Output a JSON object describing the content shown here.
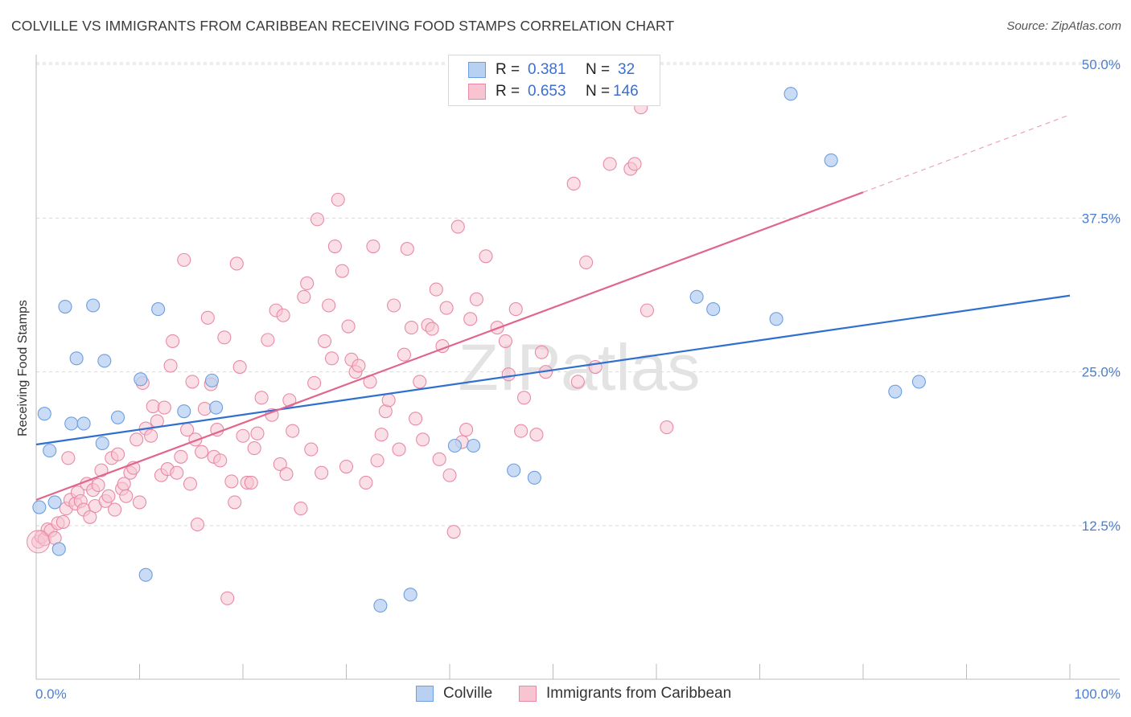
{
  "title": "COLVILLE VS IMMIGRANTS FROM CARIBBEAN RECEIVING FOOD STAMPS CORRELATION CHART",
  "source": "Source: ZipAtlas.com",
  "watermark": "ZIPatlas",
  "colors": {
    "colville_fill": "#b8d0f2",
    "colville_stroke": "#6d9ee0",
    "colville_line": "#2f6fcf",
    "caribbean_fill": "#f8c4d2",
    "caribbean_stroke": "#e88aa6",
    "caribbean_line": "#e0668e",
    "tick_text": "#4a7fd0",
    "grid": "#d9d9d9"
  },
  "legend": {
    "rows": [
      {
        "r_label": "R =",
        "r_value": "0.381",
        "n_label": "N =",
        "n_value": "32"
      },
      {
        "r_label": "R =",
        "r_value": "0.653",
        "n_label": "N =",
        "n_value": "146"
      }
    ]
  },
  "bottom_legend": [
    "Colville",
    "Immigrants from Caribbean"
  ],
  "chart_data": {
    "type": "scatter",
    "title": "COLVILLE VS IMMIGRANTS FROM CARIBBEAN RECEIVING FOOD STAMPS CORRELATION CHART",
    "xlabel": "",
    "ylabel": "Receiving Food Stamps",
    "xlim": [
      0,
      100
    ],
    "ylim": [
      0,
      52.5
    ],
    "x_tick_labels": [
      "0.0%",
      "100.0%"
    ],
    "y_ticks": [
      12.5,
      25.0,
      37.5,
      50.0
    ],
    "y_tick_labels": [
      "12.5%",
      "25.0%",
      "37.5%",
      "50.0%"
    ],
    "grid": true,
    "legend_position": "top-center",
    "series": [
      {
        "name": "Colville",
        "r": 0.381,
        "n": 32,
        "trend": {
          "x": [
            0,
            100
          ],
          "y": [
            19.1,
            31.2
          ]
        },
        "points": [
          [
            0.3,
            14.0
          ],
          [
            0.8,
            21.6
          ],
          [
            1.3,
            18.6
          ],
          [
            1.8,
            14.4
          ],
          [
            2.2,
            10.6
          ],
          [
            2.8,
            30.3
          ],
          [
            3.4,
            20.8
          ],
          [
            3.9,
            26.1
          ],
          [
            4.6,
            20.8
          ],
          [
            5.5,
            30.4
          ],
          [
            6.4,
            19.2
          ],
          [
            6.6,
            25.9
          ],
          [
            7.9,
            21.3
          ],
          [
            10.1,
            24.4
          ],
          [
            10.6,
            8.5
          ],
          [
            11.8,
            30.1
          ],
          [
            14.3,
            21.8
          ],
          [
            17.0,
            24.3
          ],
          [
            17.4,
            22.1
          ],
          [
            33.3,
            6.0
          ],
          [
            36.2,
            6.9
          ],
          [
            40.5,
            19.0
          ],
          [
            42.3,
            19.0
          ],
          [
            46.2,
            17.0
          ],
          [
            48.2,
            16.4
          ],
          [
            63.9,
            31.1
          ],
          [
            65.5,
            30.1
          ],
          [
            71.6,
            29.3
          ],
          [
            73.0,
            47.6
          ],
          [
            76.9,
            42.2
          ],
          [
            83.1,
            23.4
          ],
          [
            85.4,
            24.2
          ]
        ]
      },
      {
        "name": "Immigrants from Caribbean",
        "r": 0.653,
        "n": 146,
        "trend": {
          "x": [
            0,
            80
          ],
          "y": [
            14.6,
            39.6
          ]
        },
        "trend_dashed": {
          "x": [
            80,
            100
          ],
          "y": [
            39.6,
            45.9
          ]
        },
        "points": [
          [
            0.2,
            11.2
          ],
          [
            0.5,
            11.6
          ],
          [
            0.8,
            11.4
          ],
          [
            1.1,
            12.2
          ],
          [
            1.4,
            12.1
          ],
          [
            1.8,
            11.5
          ],
          [
            2.1,
            12.7
          ],
          [
            2.6,
            12.8
          ],
          [
            2.9,
            13.9
          ],
          [
            3.1,
            18.0
          ],
          [
            3.3,
            14.6
          ],
          [
            3.8,
            14.3
          ],
          [
            4.0,
            15.2
          ],
          [
            4.3,
            14.5
          ],
          [
            4.6,
            13.8
          ],
          [
            4.9,
            15.9
          ],
          [
            5.2,
            13.2
          ],
          [
            5.5,
            15.4
          ],
          [
            5.7,
            14.1
          ],
          [
            6.0,
            15.8
          ],
          [
            6.3,
            17.0
          ],
          [
            6.7,
            14.5
          ],
          [
            7.0,
            14.9
          ],
          [
            7.3,
            18.0
          ],
          [
            7.6,
            13.8
          ],
          [
            7.9,
            18.3
          ],
          [
            8.3,
            15.5
          ],
          [
            8.5,
            15.9
          ],
          [
            8.7,
            14.9
          ],
          [
            9.1,
            16.8
          ],
          [
            9.4,
            17.2
          ],
          [
            9.7,
            19.5
          ],
          [
            10.0,
            14.4
          ],
          [
            10.3,
            24.1
          ],
          [
            10.6,
            20.4
          ],
          [
            11.1,
            19.8
          ],
          [
            11.3,
            22.2
          ],
          [
            11.7,
            21.0
          ],
          [
            12.1,
            16.6
          ],
          [
            12.4,
            22.1
          ],
          [
            12.7,
            17.1
          ],
          [
            13.0,
            25.5
          ],
          [
            13.2,
            27.5
          ],
          [
            13.6,
            16.8
          ],
          [
            14.0,
            18.1
          ],
          [
            14.3,
            34.1
          ],
          [
            14.6,
            20.3
          ],
          [
            14.9,
            15.9
          ],
          [
            15.1,
            24.2
          ],
          [
            15.4,
            19.5
          ],
          [
            15.6,
            12.6
          ],
          [
            16.0,
            18.5
          ],
          [
            16.3,
            22.0
          ],
          [
            16.6,
            29.4
          ],
          [
            16.9,
            24.0
          ],
          [
            17.2,
            18.1
          ],
          [
            17.5,
            20.3
          ],
          [
            17.8,
            17.8
          ],
          [
            18.2,
            27.8
          ],
          [
            18.5,
            6.6
          ],
          [
            18.9,
            16.1
          ],
          [
            19.2,
            14.4
          ],
          [
            19.4,
            33.8
          ],
          [
            19.7,
            25.4
          ],
          [
            20.0,
            19.8
          ],
          [
            20.4,
            16.0
          ],
          [
            20.8,
            16.0
          ],
          [
            21.1,
            18.8
          ],
          [
            21.4,
            20.0
          ],
          [
            21.8,
            22.9
          ],
          [
            22.4,
            27.6
          ],
          [
            22.8,
            21.5
          ],
          [
            23.2,
            30.0
          ],
          [
            23.6,
            17.5
          ],
          [
            23.9,
            29.6
          ],
          [
            24.2,
            16.7
          ],
          [
            24.5,
            22.7
          ],
          [
            24.8,
            20.2
          ],
          [
            25.6,
            13.9
          ],
          [
            25.9,
            31.1
          ],
          [
            26.2,
            32.2
          ],
          [
            26.6,
            18.7
          ],
          [
            26.9,
            24.1
          ],
          [
            27.2,
            37.4
          ],
          [
            27.6,
            16.8
          ],
          [
            27.9,
            27.5
          ],
          [
            28.3,
            30.4
          ],
          [
            28.6,
            26.1
          ],
          [
            28.9,
            35.2
          ],
          [
            29.2,
            39.0
          ],
          [
            29.6,
            33.2
          ],
          [
            30.0,
            17.3
          ],
          [
            30.2,
            28.7
          ],
          [
            30.5,
            26.0
          ],
          [
            30.9,
            25.0
          ],
          [
            31.2,
            25.5
          ],
          [
            31.9,
            16.0
          ],
          [
            32.3,
            24.2
          ],
          [
            32.6,
            35.2
          ],
          [
            33.0,
            17.8
          ],
          [
            33.4,
            19.9
          ],
          [
            33.8,
            21.8
          ],
          [
            34.1,
            22.7
          ],
          [
            34.6,
            30.4
          ],
          [
            35.1,
            18.7
          ],
          [
            35.6,
            26.4
          ],
          [
            35.9,
            35.0
          ],
          [
            36.3,
            28.6
          ],
          [
            36.7,
            21.2
          ],
          [
            37.1,
            24.2
          ],
          [
            37.4,
            19.5
          ],
          [
            37.9,
            28.8
          ],
          [
            38.3,
            28.5
          ],
          [
            38.7,
            31.7
          ],
          [
            39.0,
            17.9
          ],
          [
            39.3,
            27.1
          ],
          [
            39.7,
            30.2
          ],
          [
            40.0,
            16.6
          ],
          [
            40.4,
            12.0
          ],
          [
            40.8,
            36.8
          ],
          [
            41.2,
            19.3
          ],
          [
            41.6,
            20.3
          ],
          [
            42.0,
            29.3
          ],
          [
            42.6,
            30.9
          ],
          [
            43.5,
            34.4
          ],
          [
            44.6,
            28.6
          ],
          [
            45.4,
            27.5
          ],
          [
            45.7,
            24.8
          ],
          [
            46.4,
            30.1
          ],
          [
            46.9,
            20.2
          ],
          [
            47.2,
            22.9
          ],
          [
            48.4,
            19.9
          ],
          [
            48.9,
            26.6
          ],
          [
            49.3,
            25.0
          ],
          [
            52.0,
            40.3
          ],
          [
            52.4,
            24.2
          ],
          [
            53.2,
            33.9
          ],
          [
            54.1,
            25.4
          ],
          [
            55.5,
            41.9
          ],
          [
            57.5,
            41.5
          ],
          [
            57.9,
            41.9
          ],
          [
            58.5,
            46.5
          ],
          [
            59.1,
            30.0
          ],
          [
            61.0,
            20.5
          ]
        ]
      }
    ]
  }
}
